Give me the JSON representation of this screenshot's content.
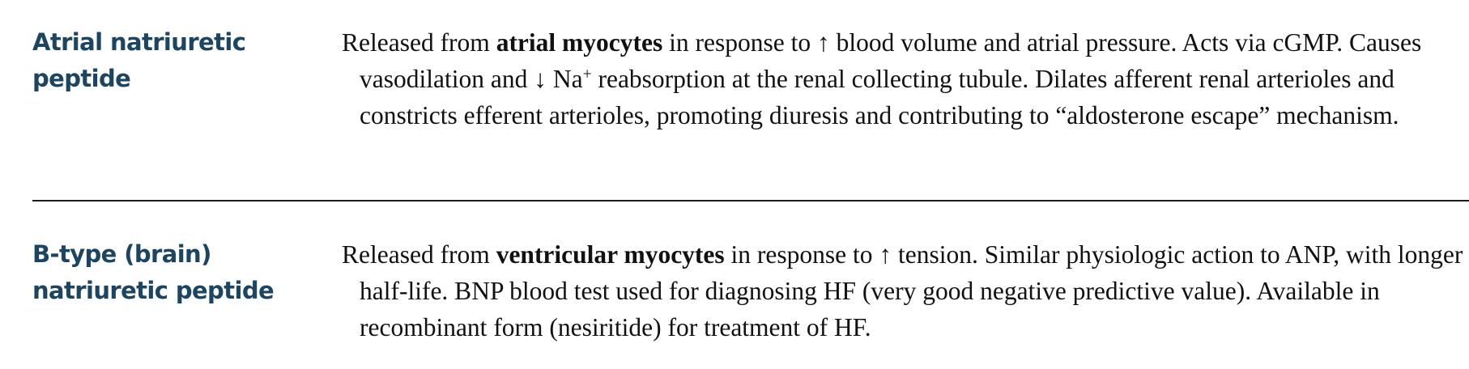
{
  "entries": [
    {
      "term": "Atrial natriuretic peptide",
      "desc": {
        "s1": "Released from ",
        "b1": "atrial myocytes",
        "s2": " in response to ↑ blood volume and atrial pressure. Acts via cGMP. Causes vasodilation and ↓ Na",
        "sup": "+",
        "s3": " reabsorption at the renal collecting tubule. Dilates afferent renal arterioles and constricts efferent arterioles, promoting diuresis and contributing to “aldosterone escape” mechanism."
      }
    },
    {
      "term": "B-type (brain) natriuretic peptide",
      "desc": {
        "s1": "Released from ",
        "b1": "ventricular myocytes",
        "s2": " in response to ↑ tension. Similar physiologic action to ANP, with longer half-life. BNP blood test used for diagnosing HF (very good negative predictive value). Available in recombinant form (nesiritide) for treatment of HF."
      }
    }
  ]
}
